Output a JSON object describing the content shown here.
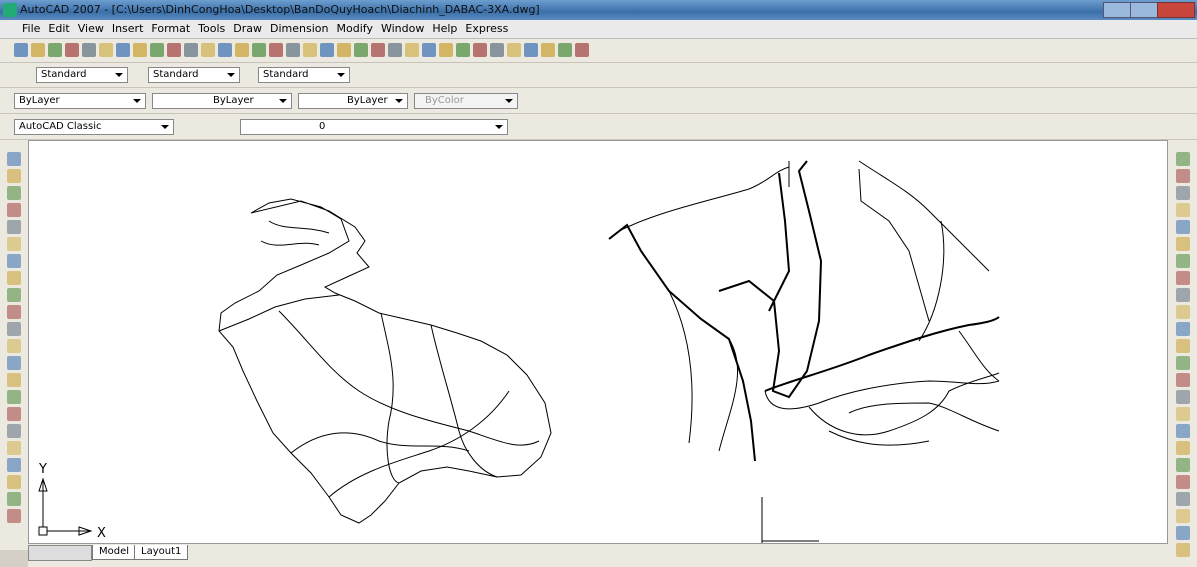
{
  "window": {
    "title": "AutoCAD 2007 - [C:\\Users\\DinhCongHoa\\Desktop\\BanDoQuyHoach\\Diachinh_DABAC-3XA.dwg]"
  },
  "menu": [
    "File",
    "Edit",
    "View",
    "Insert",
    "Format",
    "Tools",
    "Draw",
    "Dimension",
    "Modify",
    "Window",
    "Help",
    "Express"
  ],
  "toolbars": {
    "text_style": "Standard",
    "dim_style": "Standard",
    "table_style": "Standard",
    "color": "ByLayer",
    "linetype": "ByLayer",
    "lineweight": "ByLayer",
    "plot_style": "ByColor",
    "workspace": "AutoCAD Classic",
    "layer": "0"
  },
  "ucs": {
    "y": "Y",
    "x": "X"
  },
  "tabs": [
    "Model",
    "Layout1"
  ]
}
